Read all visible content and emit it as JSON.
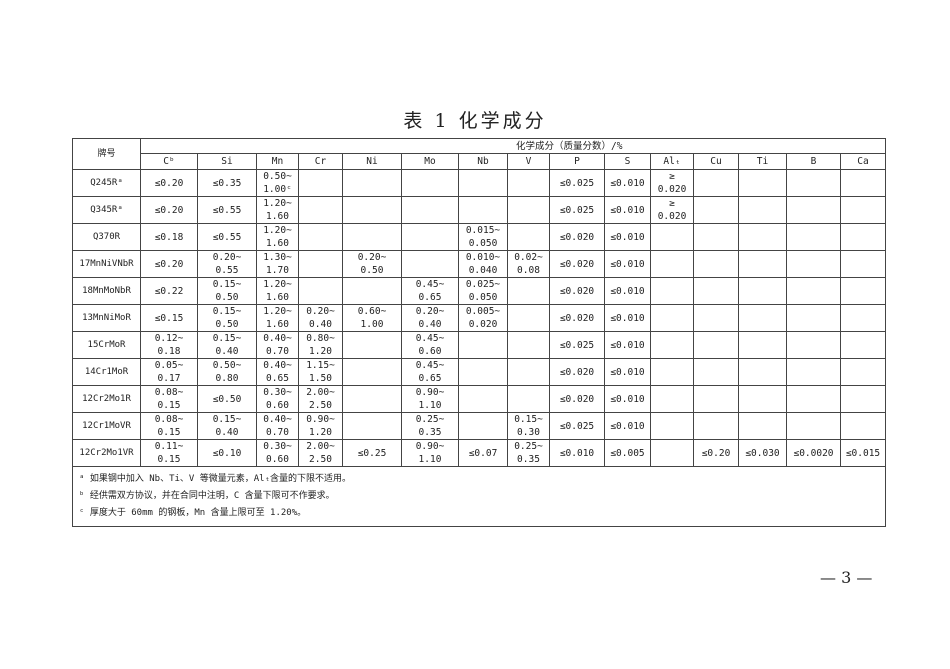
{
  "title": "表 1  化学成分",
  "table": {
    "grade_header": "牌号",
    "group_header": "化学成分（质量分数）/%",
    "columns": [
      "Cᵇ",
      "Si",
      "Mn",
      "Cr",
      "Ni",
      "Mo",
      "Nb",
      "V",
      "P",
      "S",
      "Alₜ",
      "Cu",
      "Ti",
      "B",
      "Ca"
    ],
    "rows": [
      {
        "grade": "Q245Rᵃ",
        "values": [
          "≤0.20",
          "≤0.35",
          "0.50~\n1.00ᶜ",
          "",
          "",
          "",
          "",
          "",
          "≤0.025",
          "≤0.010",
          "≥\n0.020",
          "",
          "",
          "",
          ""
        ]
      },
      {
        "grade": "Q345Rᵃ",
        "values": [
          "≤0.20",
          "≤0.55",
          "1.20~\n1.60",
          "",
          "",
          "",
          "",
          "",
          "≤0.025",
          "≤0.010",
          "≥\n0.020",
          "",
          "",
          "",
          ""
        ]
      },
      {
        "grade": "Q370R",
        "values": [
          "≤0.18",
          "≤0.55",
          "1.20~\n1.60",
          "",
          "",
          "",
          "0.015~\n0.050",
          "",
          "≤0.020",
          "≤0.010",
          "",
          "",
          "",
          "",
          ""
        ]
      },
      {
        "grade": "17MnNiVNbR",
        "values": [
          "≤0.20",
          "0.20~\n0.55",
          "1.30~\n1.70",
          "",
          "0.20~\n0.50",
          "",
          "0.010~\n0.040",
          "0.02~\n0.08",
          "≤0.020",
          "≤0.010",
          "",
          "",
          "",
          "",
          ""
        ]
      },
      {
        "grade": "18MnMoNbR",
        "values": [
          "≤0.22",
          "0.15~\n0.50",
          "1.20~\n1.60",
          "",
          "",
          "0.45~\n0.65",
          "0.025~\n0.050",
          "",
          "≤0.020",
          "≤0.010",
          "",
          "",
          "",
          "",
          ""
        ]
      },
      {
        "grade": "13MnNiMoR",
        "values": [
          "≤0.15",
          "0.15~\n0.50",
          "1.20~\n1.60",
          "0.20~\n0.40",
          "0.60~\n1.00",
          "0.20~\n0.40",
          "0.005~\n0.020",
          "",
          "≤0.020",
          "≤0.010",
          "",
          "",
          "",
          "",
          ""
        ]
      },
      {
        "grade": "15CrMoR",
        "values": [
          "0.12~\n0.18",
          "0.15~\n0.40",
          "0.40~\n0.70",
          "0.80~\n1.20",
          "",
          "0.45~\n0.60",
          "",
          "",
          "≤0.025",
          "≤0.010",
          "",
          "",
          "",
          "",
          ""
        ]
      },
      {
        "grade": "14Cr1MoR",
        "values": [
          "0.05~\n0.17",
          "0.50~\n0.80",
          "0.40~\n0.65",
          "1.15~\n1.50",
          "",
          "0.45~\n0.65",
          "",
          "",
          "≤0.020",
          "≤0.010",
          "",
          "",
          "",
          "",
          ""
        ]
      },
      {
        "grade": "12Cr2Mo1R",
        "values": [
          "0.08~\n0.15",
          "≤0.50",
          "0.30~\n0.60",
          "2.00~\n2.50",
          "",
          "0.90~\n1.10",
          "",
          "",
          "≤0.020",
          "≤0.010",
          "",
          "",
          "",
          "",
          ""
        ]
      },
      {
        "grade": "12Cr1MoVR",
        "values": [
          "0.08~\n0.15",
          "0.15~\n0.40",
          "0.40~\n0.70",
          "0.90~\n1.20",
          "",
          "0.25~\n0.35",
          "",
          "0.15~\n0.30",
          "≤0.025",
          "≤0.010",
          "",
          "",
          "",
          "",
          ""
        ]
      },
      {
        "grade": "12Cr2Mo1VR",
        "values": [
          "0.11~\n0.15",
          "≤0.10",
          "0.30~\n0.60",
          "2.00~\n2.50",
          "≤0.25",
          "0.90~\n1.10",
          "≤0.07",
          "0.25~\n0.35",
          "≤0.010",
          "≤0.005",
          "",
          "≤0.20",
          "≤0.030",
          "≤0.0020",
          "≤0.015"
        ]
      }
    ],
    "footnotes": [
      "ᵃ 如果钢中加入 Nb、Ti、V 等微量元素，Alₜ含量的下限不适用。",
      "ᵇ 经供需双方协议，并在合同中注明，C 含量下限可不作要求。",
      "ᶜ 厚度大于 60mm 的钢板，Mn 含量上限可至 1.20%。"
    ]
  },
  "page_number": "— 3 —"
}
